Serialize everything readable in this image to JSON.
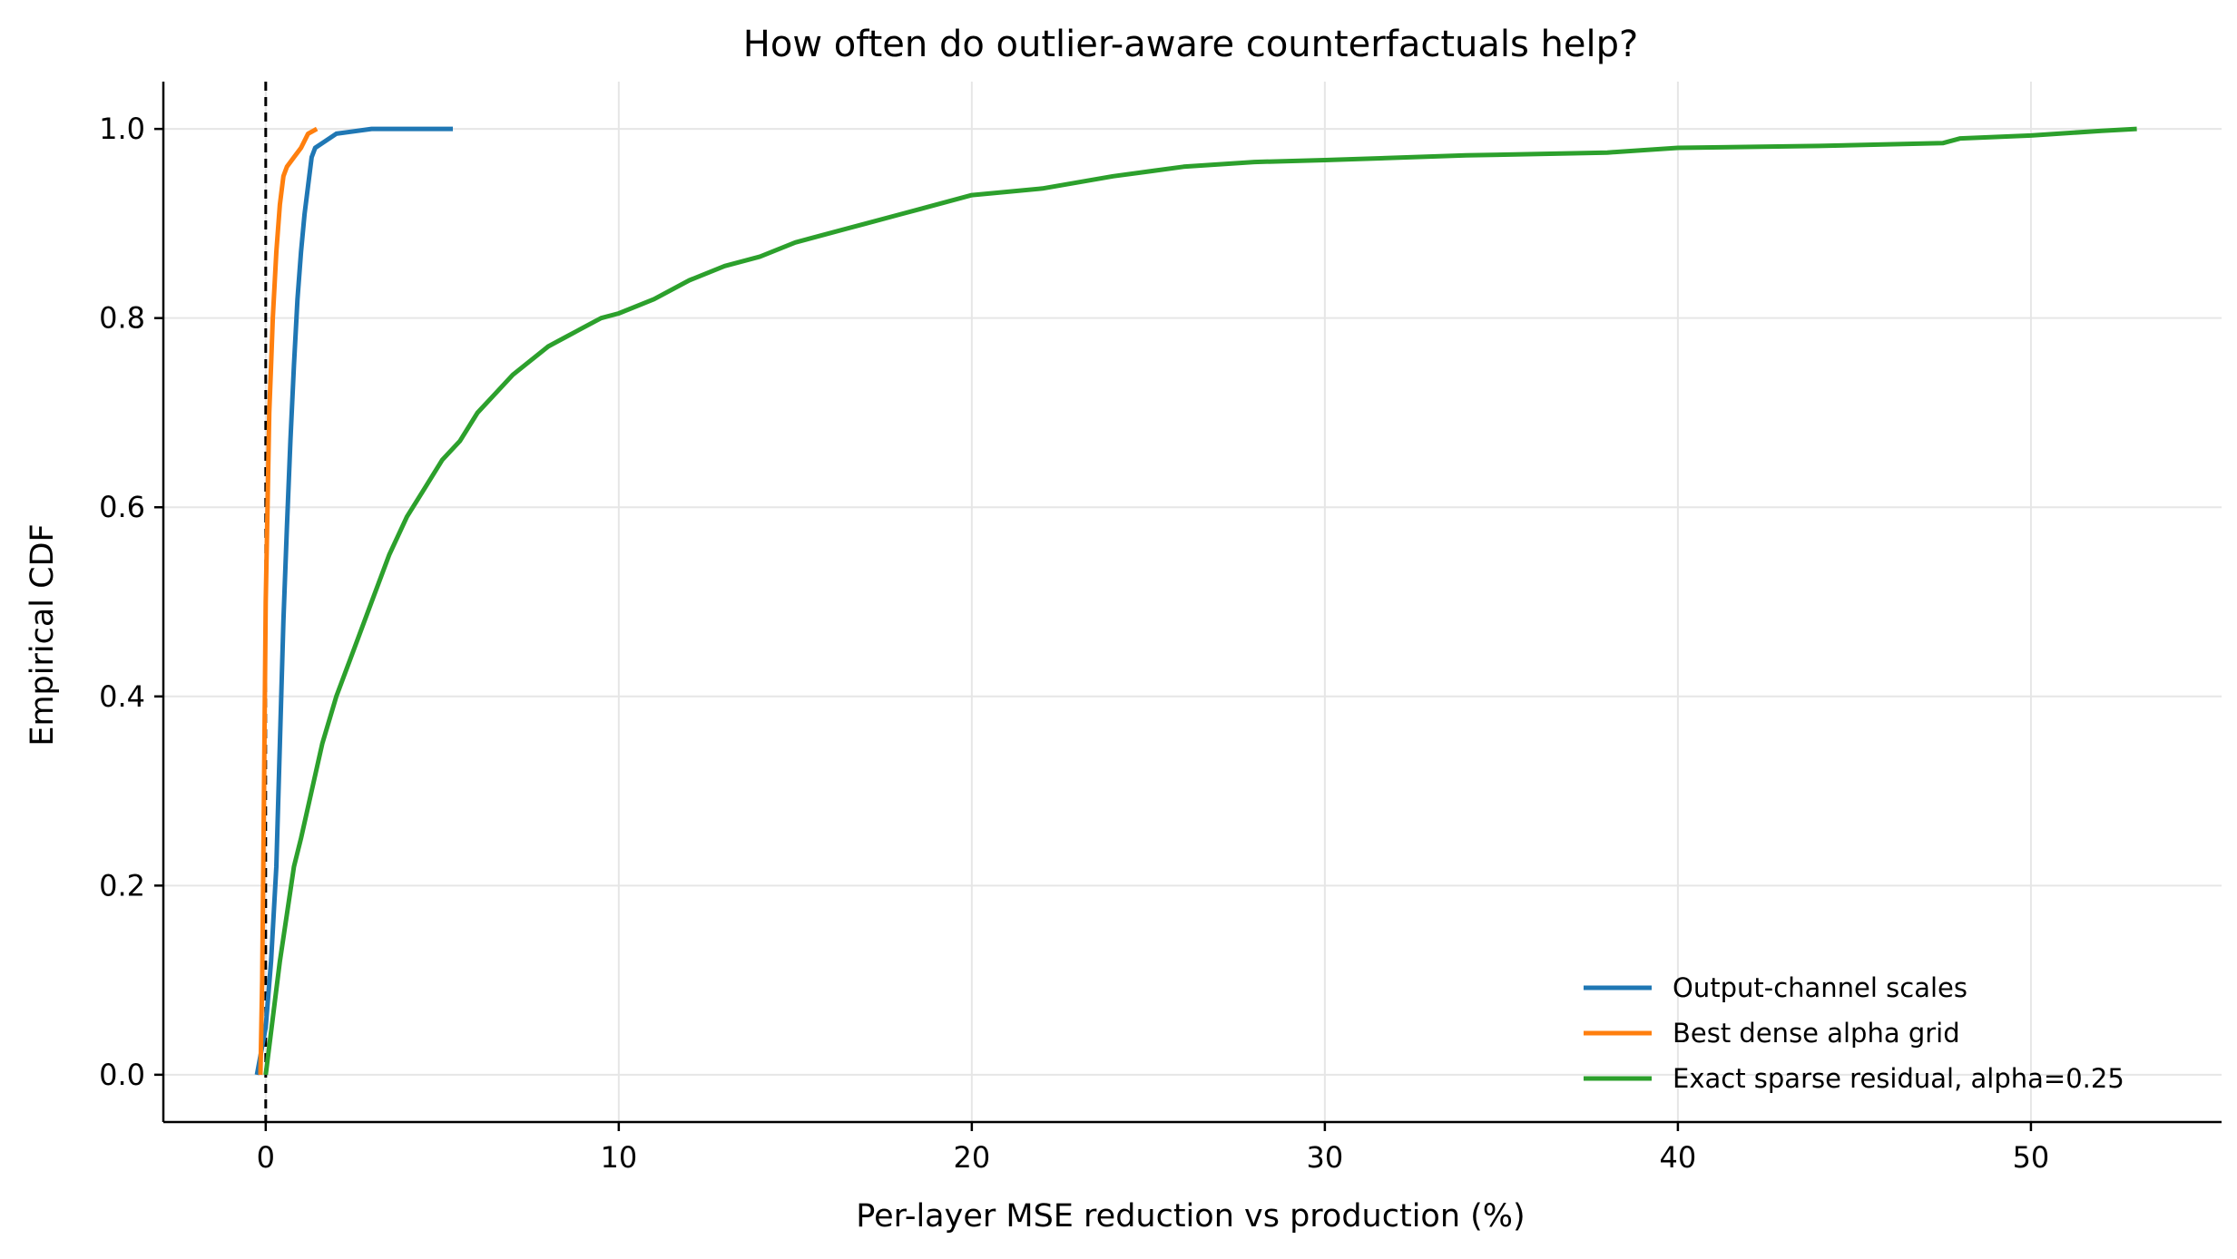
{
  "chart_data": {
    "type": "line",
    "title": "How often do outlier-aware counterfactuals help?",
    "xlabel": "Per-layer MSE reduction vs production (%)",
    "ylabel": "Empirical CDF",
    "xlim": [
      -2.9,
      55.4
    ],
    "ylim": [
      -0.05,
      1.05
    ],
    "xticks": [
      0,
      10,
      20,
      30,
      40,
      50
    ],
    "xtick_labels": [
      "0",
      "10",
      "20",
      "30",
      "40",
      "50"
    ],
    "yticks": [
      0.0,
      0.2,
      0.4,
      0.6,
      0.8,
      1.0
    ],
    "ytick_labels": [
      "0.0",
      "0.2",
      "0.4",
      "0.6",
      "0.8",
      "1.0"
    ],
    "grid": true,
    "legend_position": "bottom-right",
    "reference_line": {
      "x": 0,
      "style": "dashed",
      "color": "#000000"
    },
    "series": [
      {
        "name": "Output-channel scales",
        "color": "#1f77b4",
        "x": [
          -0.25,
          0.0,
          0.15,
          0.3,
          0.4,
          0.5,
          0.6,
          0.7,
          0.8,
          0.9,
          1.0,
          1.1,
          1.2,
          1.3,
          1.4,
          1.6,
          2.0,
          3.0,
          5.3
        ],
        "y": [
          0.0,
          0.05,
          0.12,
          0.22,
          0.35,
          0.48,
          0.58,
          0.67,
          0.75,
          0.82,
          0.87,
          0.91,
          0.94,
          0.97,
          0.98,
          0.985,
          0.995,
          1.0,
          1.0
        ]
      },
      {
        "name": "Best dense alpha grid",
        "color": "#ff7f0e",
        "x": [
          -0.15,
          -0.1,
          -0.05,
          0.0,
          0.05,
          0.1,
          0.15,
          0.2,
          0.3,
          0.4,
          0.5,
          0.6,
          0.8,
          1.0,
          1.2,
          1.45
        ],
        "y": [
          0.0,
          0.1,
          0.3,
          0.5,
          0.6,
          0.7,
          0.75,
          0.8,
          0.87,
          0.92,
          0.95,
          0.96,
          0.97,
          0.98,
          0.995,
          1.0
        ]
      },
      {
        "name": "Exact sparse residual, alpha=0.25",
        "color": "#2ca02c",
        "x": [
          0.0,
          0.2,
          0.4,
          0.6,
          0.8,
          1.0,
          1.3,
          1.6,
          2.0,
          2.5,
          3.0,
          3.5,
          4.0,
          4.5,
          5.0,
          5.5,
          6.0,
          6.5,
          7.0,
          7.5,
          8.0,
          8.5,
          9.0,
          9.5,
          10.0,
          11.0,
          12.0,
          13.0,
          14.0,
          15.0,
          16.0,
          17.0,
          18.0,
          19.0,
          20.0,
          22.0,
          24.0,
          26.0,
          28.0,
          30.0,
          34.0,
          38.0,
          40.0,
          44.0,
          47.5,
          48.0,
          50.0,
          52.0,
          53.0
        ],
        "y": [
          0.0,
          0.06,
          0.12,
          0.17,
          0.22,
          0.25,
          0.3,
          0.35,
          0.4,
          0.45,
          0.5,
          0.55,
          0.59,
          0.62,
          0.65,
          0.67,
          0.7,
          0.72,
          0.74,
          0.755,
          0.77,
          0.78,
          0.79,
          0.8,
          0.805,
          0.82,
          0.84,
          0.855,
          0.865,
          0.88,
          0.89,
          0.9,
          0.91,
          0.92,
          0.93,
          0.937,
          0.95,
          0.96,
          0.965,
          0.967,
          0.972,
          0.975,
          0.98,
          0.982,
          0.985,
          0.99,
          0.993,
          0.998,
          1.0
        ]
      }
    ]
  }
}
